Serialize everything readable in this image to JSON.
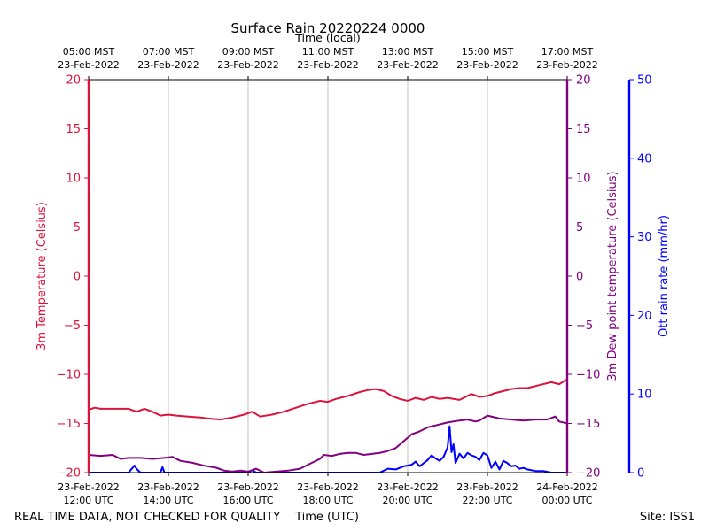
{
  "chart_data": {
    "type": "line",
    "title": "Surface Rain 20220224 0000",
    "top_axis_label": "Time (local)",
    "xlabel": "Time (UTC)",
    "footer_left": "REAL TIME DATA, NOT CHECKED FOR QUALITY",
    "footer_right": "Site: ISS1",
    "x_range_hours_utc": [
      12,
      24
    ],
    "x_ticks_utc": [
      {
        "hour": 12,
        "line1": "23-Feb-2022",
        "line2": "12:00 UTC"
      },
      {
        "hour": 14,
        "line1": "23-Feb-2022",
        "line2": "14:00 UTC"
      },
      {
        "hour": 16,
        "line1": "23-Feb-2022",
        "line2": "16:00 UTC"
      },
      {
        "hour": 18,
        "line1": "23-Feb-2022",
        "line2": "18:00 UTC"
      },
      {
        "hour": 20,
        "line1": "23-Feb-2022",
        "line2": "20:00 UTC"
      },
      {
        "hour": 22,
        "line1": "23-Feb-2022",
        "line2": "22:00 UTC"
      },
      {
        "hour": 24,
        "line1": "24-Feb-2022",
        "line2": "00:00 UTC"
      }
    ],
    "x_ticks_local": [
      {
        "hour": 12,
        "line1": "05:00 MST",
        "line2": "23-Feb-2022"
      },
      {
        "hour": 14,
        "line1": "07:00 MST",
        "line2": "23-Feb-2022"
      },
      {
        "hour": 16,
        "line1": "09:00 MST",
        "line2": "23-Feb-2022"
      },
      {
        "hour": 18,
        "line1": "11:00 MST",
        "line2": "23-Feb-2022"
      },
      {
        "hour": 20,
        "line1": "13:00 MST",
        "line2": "23-Feb-2022"
      },
      {
        "hour": 22,
        "line1": "15:00 MST",
        "line2": "23-Feb-2022"
      },
      {
        "hour": 24,
        "line1": "17:00 MST",
        "line2": "23-Feb-2022"
      }
    ],
    "grid_x": true,
    "y_left": {
      "label": "3m Temperature (Celsius)",
      "range": [
        -20,
        20
      ],
      "ticks": [
        20,
        15,
        10,
        5,
        0,
        -5,
        -10,
        -15,
        -20
      ],
      "tick_labels": [
        "20",
        "15",
        "10",
        "5",
        "0",
        "−5",
        "−10",
        "−15",
        "−20"
      ],
      "color": "#dc143c"
    },
    "y_right1": {
      "label": "3m Dew point temperature (Celsius)",
      "range": [
        -20,
        20
      ],
      "ticks": [
        20,
        15,
        10,
        5,
        0,
        -5,
        -10,
        -15,
        -20
      ],
      "tick_labels": [
        "20",
        "15",
        "10",
        "5",
        "0",
        "−5",
        "−10",
        "−15",
        "−20"
      ],
      "color": "#800080"
    },
    "y_right2": {
      "label": "Ott rain rate (mm/hr)",
      "range": [
        0,
        50
      ],
      "ticks": [
        50,
        40,
        30,
        20,
        10,
        0
      ],
      "tick_labels": [
        "50",
        "40",
        "30",
        "20",
        "10",
        "0"
      ],
      "color": "#0000ff"
    },
    "series": [
      {
        "name": "3m Temperature",
        "axis": "left",
        "color": "#dc143c",
        "x": [
          12.0,
          12.15,
          12.3,
          12.6,
          13.0,
          13.2,
          13.4,
          13.6,
          13.8,
          14.0,
          14.2,
          14.5,
          14.8,
          15.0,
          15.3,
          15.6,
          15.9,
          16.1,
          16.3,
          16.6,
          16.9,
          17.2,
          17.5,
          17.8,
          18.0,
          18.2,
          18.5,
          18.8,
          19.0,
          19.2,
          19.4,
          19.6,
          19.8,
          20.0,
          20.2,
          20.4,
          20.6,
          20.8,
          21.0,
          21.3,
          21.6,
          21.8,
          22.0,
          22.2,
          22.4,
          22.6,
          22.8,
          23.0,
          23.3,
          23.6,
          23.8,
          24.0
        ],
        "y": [
          -13.6,
          -13.4,
          -13.5,
          -13.5,
          -13.5,
          -13.8,
          -13.5,
          -13.8,
          -14.2,
          -14.1,
          -14.2,
          -14.3,
          -14.4,
          -14.5,
          -14.6,
          -14.4,
          -14.1,
          -13.8,
          -14.3,
          -14.1,
          -13.8,
          -13.4,
          -13.0,
          -12.7,
          -12.8,
          -12.5,
          -12.2,
          -11.8,
          -11.6,
          -11.5,
          -11.7,
          -12.2,
          -12.5,
          -12.7,
          -12.4,
          -12.6,
          -12.3,
          -12.5,
          -12.4,
          -12.6,
          -12.0,
          -12.3,
          -12.2,
          -11.9,
          -11.7,
          -11.5,
          -11.4,
          -11.4,
          -11.1,
          -10.8,
          -11.0,
          -10.5
        ]
      },
      {
        "name": "3m Dew point temperature",
        "axis": "right1",
        "color": "#800080",
        "x": [
          12.0,
          12.3,
          12.6,
          12.8,
          13.0,
          13.3,
          13.6,
          13.9,
          14.1,
          14.3,
          14.6,
          14.9,
          15.2,
          15.4,
          15.6,
          15.8,
          16.0,
          16.2,
          16.4,
          16.7,
          17.0,
          17.3,
          17.6,
          17.8,
          17.9,
          18.1,
          18.3,
          18.5,
          18.7,
          18.9,
          19.1,
          19.3,
          19.5,
          19.7,
          19.9,
          20.1,
          20.3,
          20.5,
          20.7,
          21.0,
          21.3,
          21.5,
          21.7,
          21.8,
          22.0,
          22.3,
          22.6,
          22.9,
          23.2,
          23.5,
          23.7,
          23.8,
          24.0
        ],
        "y": [
          -18.2,
          -18.3,
          -18.2,
          -18.6,
          -18.5,
          -18.5,
          -18.6,
          -18.5,
          -18.4,
          -18.8,
          -19.0,
          -19.3,
          -19.5,
          -19.8,
          -19.9,
          -19.8,
          -19.9,
          -19.6,
          -20.0,
          -19.9,
          -19.8,
          -19.6,
          -19.0,
          -18.6,
          -18.2,
          -18.3,
          -18.1,
          -18.0,
          -18.0,
          -18.2,
          -18.1,
          -18.0,
          -17.8,
          -17.5,
          -16.8,
          -16.1,
          -15.8,
          -15.4,
          -15.2,
          -14.9,
          -14.7,
          -14.6,
          -14.8,
          -14.7,
          -14.2,
          -14.5,
          -14.6,
          -14.7,
          -14.6,
          -14.6,
          -14.3,
          -14.8,
          -15.0
        ]
      },
      {
        "name": "Ott rain rate",
        "axis": "right2",
        "color": "#0000ff",
        "x": [
          12.0,
          13.0,
          13.1,
          13.15,
          13.2,
          13.3,
          13.8,
          13.85,
          13.9,
          14.0,
          16.0,
          16.1,
          16.2,
          19.0,
          19.3,
          19.5,
          19.7,
          19.9,
          20.1,
          20.2,
          20.3,
          20.5,
          20.6,
          20.7,
          20.8,
          20.9,
          21.0,
          21.05,
          21.1,
          21.15,
          21.2,
          21.3,
          21.4,
          21.5,
          21.6,
          21.7,
          21.8,
          21.9,
          22.0,
          22.1,
          22.2,
          22.3,
          22.4,
          22.5,
          22.6,
          22.7,
          22.8,
          22.9,
          23.0,
          23.2,
          23.4,
          23.6,
          24.0
        ],
        "y": [
          0,
          0,
          0.6,
          0.9,
          0.5,
          0,
          0,
          0.7,
          0,
          0,
          0,
          0.3,
          0,
          0,
          0,
          0.5,
          0.4,
          0.8,
          1.0,
          1.4,
          0.8,
          1.6,
          2.2,
          1.8,
          1.5,
          2.0,
          3.2,
          5.9,
          2.6,
          3.6,
          1.2,
          2.4,
          1.8,
          2.5,
          2.2,
          2.0,
          1.6,
          2.5,
          2.2,
          0.6,
          1.4,
          0.4,
          1.5,
          1.2,
          0.8,
          0.9,
          0.5,
          0.6,
          0.4,
          0.2,
          0.2,
          0,
          0
        ]
      }
    ]
  }
}
